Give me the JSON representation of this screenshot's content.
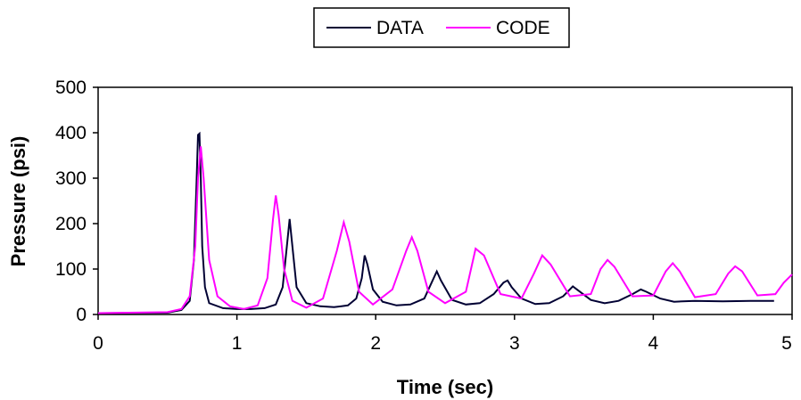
{
  "chart_data": {
    "type": "line",
    "title": "",
    "xlabel": "Time (sec)",
    "ylabel": "Pressure (psi)",
    "xlim": [
      0,
      5
    ],
    "ylim": [
      0,
      500
    ],
    "x_ticks": [
      "0",
      "1",
      "2",
      "3",
      "4",
      "5"
    ],
    "y_ticks": [
      "0",
      "100",
      "200",
      "300",
      "400",
      "500"
    ],
    "grid": false,
    "legend_position": "top-center",
    "series": [
      {
        "name": "DATA",
        "color": "#000033",
        "x": [
          0,
          0.5,
          0.6,
          0.66,
          0.69,
          0.71,
          0.72,
          0.73,
          0.74,
          0.75,
          0.77,
          0.8,
          0.9,
          1.0,
          1.1,
          1.2,
          1.28,
          1.33,
          1.36,
          1.38,
          1.4,
          1.43,
          1.5,
          1.6,
          1.7,
          1.8,
          1.86,
          1.9,
          1.92,
          1.94,
          1.98,
          2.05,
          2.15,
          2.25,
          2.35,
          2.41,
          2.44,
          2.47,
          2.55,
          2.65,
          2.75,
          2.85,
          2.92,
          2.95,
          2.98,
          3.05,
          3.15,
          3.25,
          3.35,
          3.42,
          3.45,
          3.55,
          3.65,
          3.75,
          3.85,
          3.91,
          3.95,
          4.05,
          4.15,
          4.3,
          4.5,
          4.7,
          4.87
        ],
        "values": [
          3,
          4,
          10,
          30,
          120,
          300,
          395,
          398,
          300,
          150,
          60,
          25,
          14,
          12,
          12,
          14,
          22,
          60,
          150,
          210,
          150,
          60,
          25,
          18,
          16,
          20,
          35,
          80,
          130,
          110,
          55,
          28,
          20,
          22,
          35,
          75,
          95,
          75,
          32,
          22,
          25,
          45,
          70,
          75,
          60,
          35,
          23,
          25,
          40,
          62,
          55,
          32,
          25,
          30,
          45,
          55,
          50,
          35,
          28,
          30,
          29,
          30,
          30
        ]
      },
      {
        "name": "CODE",
        "color": "#ff00ff",
        "x": [
          0,
          0.5,
          0.6,
          0.66,
          0.7,
          0.72,
          0.74,
          0.76,
          0.8,
          0.86,
          0.95,
          1.05,
          1.15,
          1.22,
          1.26,
          1.28,
          1.3,
          1.34,
          1.4,
          1.5,
          1.62,
          1.72,
          1.77,
          1.81,
          1.88,
          1.98,
          2.12,
          2.22,
          2.26,
          2.3,
          2.38,
          2.5,
          2.65,
          2.72,
          2.78,
          2.9,
          3.05,
          3.14,
          3.2,
          3.26,
          3.4,
          3.55,
          3.62,
          3.67,
          3.72,
          3.85,
          4.0,
          4.09,
          4.14,
          4.19,
          4.3,
          4.45,
          4.54,
          4.59,
          4.64,
          4.75,
          4.88,
          4.94,
          5.0
        ],
        "values": [
          3,
          5,
          12,
          40,
          150,
          300,
          370,
          300,
          120,
          40,
          18,
          12,
          20,
          80,
          210,
          262,
          220,
          100,
          30,
          15,
          35,
          140,
          203,
          160,
          50,
          22,
          55,
          140,
          170,
          140,
          50,
          25,
          50,
          145,
          130,
          45,
          35,
          90,
          130,
          110,
          40,
          45,
          100,
          120,
          105,
          40,
          42,
          95,
          113,
          95,
          38,
          45,
          90,
          106,
          95,
          42,
          45,
          70,
          88
        ]
      }
    ]
  }
}
